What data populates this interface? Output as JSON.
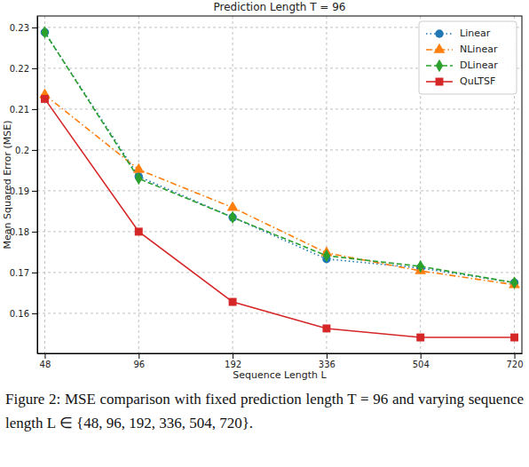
{
  "chart_data": {
    "type": "line",
    "title": "Prediction Length T = 96",
    "x_label": "Sequence Length L",
    "y_label": "Mean Squared Error (MSE)",
    "caption": "Figure 2: MSE comparison with fixed prediction length T = 96 and varying sequence length L ∈ {48, 96, 192, 336, 504, 720}.",
    "categories": [
      "48",
      "96",
      "192",
      "336",
      "504",
      "720"
    ],
    "series": [
      {
        "name": "Linear",
        "color": "#1f77b4",
        "marker": "circle",
        "line_style": "dotted",
        "values": [
          0.2288,
          0.1935,
          0.1835,
          0.1733,
          0.1711,
          0.1675
        ]
      },
      {
        "name": "NLinear",
        "color": "#ff7f0e",
        "marker": "triangle",
        "line_style": "dashdot",
        "values": [
          0.2135,
          0.1952,
          0.1859,
          0.1748,
          0.1704,
          0.167
        ]
      },
      {
        "name": "DLinear",
        "color": "#2ca02c",
        "marker": "diamond",
        "line_style": "dashed",
        "values": [
          0.2288,
          0.193,
          0.1835,
          0.1741,
          0.1715,
          0.1675
        ]
      },
      {
        "name": "QuLTSF",
        "color": "#d62728",
        "marker": "square",
        "line_style": "solid",
        "values": [
          0.2125,
          0.18,
          0.1628,
          0.1563,
          0.1541,
          0.1541
        ]
      }
    ],
    "ylim": [
      0.1502,
      0.2328
    ],
    "yticks": [
      0.16,
      0.17,
      0.18,
      0.19,
      0.2,
      0.21,
      0.22,
      0.23
    ],
    "grid": true,
    "legend": "upper right"
  }
}
